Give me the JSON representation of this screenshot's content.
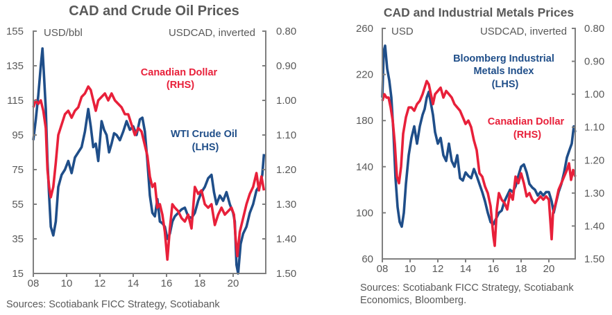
{
  "colors": {
    "oil": "#1f4e89",
    "cad": "#e8203a",
    "metals": "#1f4e89",
    "axis": "#7f7f7f",
    "text": "#595959"
  },
  "chart_data": [
    {
      "type": "line",
      "title": "CAD and Crude Oil Prices",
      "left_unit": "USD/bbl",
      "right_unit": "USDCAD, inverted",
      "xlabel": "",
      "xlim": [
        2008,
        2021.9
      ],
      "x_ticks": [
        "08",
        "10",
        "12",
        "14",
        "16",
        "18",
        "20"
      ],
      "ylim_left": [
        15,
        155
      ],
      "y_ticks_left": [
        "155",
        "135",
        "115",
        "95",
        "75",
        "55",
        "35",
        "15"
      ],
      "ylim_right": [
        0.8,
        1.5
      ],
      "right_inverted": true,
      "y_ticks_right": [
        "0.80",
        "0.90",
        "1.00",
        "1.10",
        "1.20",
        "1.30",
        "1.40",
        "1.50"
      ],
      "grid": false,
      "annotations": [
        {
          "text": [
            "Canadian Dollar",
            "(RHS)"
          ],
          "series": "cad"
        },
        {
          "text": [
            "WTI Crude Oil",
            "(LHS)"
          ],
          "series": "oil"
        }
      ],
      "source": [
        "Sources: Scotiabank FICC Strategy, Scotiabank"
      ],
      "series": [
        {
          "name": "WTI Crude Oil (LHS)",
          "axis": "left",
          "color_key": "oil",
          "x": [
            2008.0,
            2008.15,
            2008.3,
            2008.45,
            2008.55,
            2008.65,
            2008.75,
            2008.85,
            2008.95,
            2009.05,
            2009.2,
            2009.35,
            2009.5,
            2009.7,
            2009.9,
            2010.1,
            2010.3,
            2010.5,
            2010.7,
            2010.9,
            2011.1,
            2011.3,
            2011.45,
            2011.6,
            2011.75,
            2011.9,
            2012.1,
            2012.25,
            2012.4,
            2012.55,
            2012.7,
            2012.85,
            2013.0,
            2013.2,
            2013.4,
            2013.6,
            2013.8,
            2014.0,
            2014.2,
            2014.4,
            2014.55,
            2014.7,
            2014.85,
            2015.0,
            2015.15,
            2015.3,
            2015.45,
            2015.6,
            2015.75,
            2015.9,
            2016.05,
            2016.2,
            2016.35,
            2016.5,
            2016.7,
            2016.9,
            2017.1,
            2017.3,
            2017.5,
            2017.7,
            2017.9,
            2018.1,
            2018.3,
            2018.5,
            2018.7,
            2018.85,
            2019.0,
            2019.2,
            2019.4,
            2019.6,
            2019.8,
            2020.0,
            2020.1,
            2020.2,
            2020.3,
            2020.45,
            2020.6,
            2020.8,
            2021.0,
            2021.2,
            2021.4,
            2021.6,
            2021.75,
            2021.85
          ],
          "y": [
            92,
            104,
            118,
            135,
            145,
            128,
            110,
            80,
            60,
            42,
            37,
            45,
            65,
            72,
            75,
            80,
            73,
            82,
            85,
            88,
            97,
            110,
            100,
            88,
            90,
            80,
            103,
            98,
            95,
            85,
            90,
            96,
            95,
            92,
            97,
            103,
            98,
            100,
            95,
            104,
            105,
            97,
            80,
            60,
            50,
            48,
            58,
            45,
            44,
            42,
            35,
            38,
            45,
            48,
            50,
            52,
            53,
            48,
            47,
            50,
            57,
            62,
            65,
            70,
            72,
            62,
            55,
            60,
            57,
            62,
            55,
            50,
            45,
            20,
            15,
            32,
            38,
            42,
            50,
            55,
            63,
            66,
            72,
            84
          ]
        },
        {
          "name": "Canadian Dollar (RHS)",
          "axis": "right",
          "color_key": "cad",
          "x": [
            2008.0,
            2008.15,
            2008.3,
            2008.45,
            2008.6,
            2008.75,
            2008.85,
            2008.95,
            2009.05,
            2009.2,
            2009.35,
            2009.5,
            2009.7,
            2009.9,
            2010.1,
            2010.3,
            2010.5,
            2010.7,
            2010.9,
            2011.1,
            2011.3,
            2011.45,
            2011.6,
            2011.75,
            2011.9,
            2012.1,
            2012.3,
            2012.5,
            2012.7,
            2012.9,
            2013.1,
            2013.3,
            2013.5,
            2013.7,
            2013.9,
            2014.1,
            2014.3,
            2014.5,
            2014.7,
            2014.85,
            2015.0,
            2015.15,
            2015.3,
            2015.45,
            2015.6,
            2015.75,
            2015.9,
            2016.05,
            2016.2,
            2016.35,
            2016.5,
            2016.7,
            2016.9,
            2017.1,
            2017.3,
            2017.5,
            2017.7,
            2017.9,
            2018.1,
            2018.3,
            2018.5,
            2018.7,
            2018.9,
            2019.1,
            2019.3,
            2019.5,
            2019.7,
            2019.9,
            2020.05,
            2020.15,
            2020.25,
            2020.4,
            2020.6,
            2020.8,
            2021.0,
            2021.2,
            2021.4,
            2021.55,
            2021.7,
            2021.85
          ],
          "y": [
            1.02,
            1.0,
            1.01,
            1.0,
            1.03,
            1.08,
            1.2,
            1.25,
            1.28,
            1.25,
            1.18,
            1.1,
            1.07,
            1.04,
            1.03,
            1.05,
            1.03,
            1.02,
            0.99,
            0.98,
            0.96,
            0.97,
            1.0,
            1.03,
            1.0,
            0.99,
            0.98,
            1.0,
            0.98,
            1.0,
            1.01,
            1.02,
            1.04,
            1.04,
            1.07,
            1.1,
            1.08,
            1.09,
            1.13,
            1.16,
            1.22,
            1.25,
            1.24,
            1.31,
            1.3,
            1.33,
            1.38,
            1.46,
            1.37,
            1.3,
            1.31,
            1.32,
            1.34,
            1.35,
            1.33,
            1.37,
            1.25,
            1.27,
            1.26,
            1.3,
            1.31,
            1.3,
            1.36,
            1.33,
            1.31,
            1.33,
            1.32,
            1.31,
            1.33,
            1.4,
            1.45,
            1.38,
            1.34,
            1.3,
            1.27,
            1.25,
            1.21,
            1.26,
            1.22,
            1.26
          ]
        }
      ]
    },
    {
      "type": "line",
      "title": "CAD and Industrial Metals Prices",
      "left_unit": "USD",
      "right_unit": "USDCAD, inverted",
      "xlabel": "",
      "xlim": [
        2008,
        2021.9
      ],
      "x_ticks": [
        "08",
        "10",
        "12",
        "14",
        "16",
        "18",
        "20"
      ],
      "ylim_left": [
        60,
        260
      ],
      "y_ticks_left": [
        "260",
        "220",
        "180",
        "140",
        "100",
        "60"
      ],
      "ylim_right": [
        0.8,
        1.5
      ],
      "right_inverted": true,
      "y_ticks_right": [
        "0.80",
        "0.90",
        "1.00",
        "1.10",
        "1.20",
        "1.30",
        "1.40",
        "1.50"
      ],
      "grid": false,
      "annotations": [
        {
          "text": [
            "Bloomberg Industrial",
            "Metals Index",
            "(LHS)"
          ],
          "series": "metals"
        },
        {
          "text": [
            "Canadian Dollar",
            "(RHS)"
          ],
          "series": "cad"
        }
      ],
      "source": [
        "Sources: Scotiabank FICC Strategy, Scotiabank",
        "Economics, Bloomberg."
      ],
      "series": [
        {
          "name": "Bloomberg Industrial Metals Index (LHS)",
          "axis": "left",
          "color_key": "metals",
          "x": [
            2008.0,
            2008.1,
            2008.2,
            2008.35,
            2008.5,
            2008.65,
            2008.8,
            2008.95,
            2009.1,
            2009.25,
            2009.4,
            2009.55,
            2009.7,
            2009.9,
            2010.1,
            2010.3,
            2010.5,
            2010.7,
            2010.9,
            2011.05,
            2011.2,
            2011.35,
            2011.5,
            2011.65,
            2011.8,
            2012.0,
            2012.2,
            2012.4,
            2012.6,
            2012.8,
            2013.0,
            2013.2,
            2013.4,
            2013.6,
            2013.8,
            2014.0,
            2014.2,
            2014.4,
            2014.6,
            2014.8,
            2015.0,
            2015.2,
            2015.4,
            2015.6,
            2015.8,
            2016.0,
            2016.2,
            2016.4,
            2016.6,
            2016.8,
            2017.0,
            2017.2,
            2017.4,
            2017.6,
            2017.8,
            2018.0,
            2018.2,
            2018.4,
            2018.6,
            2018.8,
            2019.0,
            2019.2,
            2019.4,
            2019.6,
            2019.8,
            2020.0,
            2020.2,
            2020.35,
            2020.5,
            2020.7,
            2020.9,
            2021.1,
            2021.3,
            2021.5,
            2021.65,
            2021.8,
            2021.9
          ],
          "y": [
            200,
            240,
            245,
            225,
            215,
            200,
            170,
            130,
            105,
            92,
            88,
            100,
            125,
            150,
            165,
            175,
            160,
            175,
            185,
            190,
            200,
            205,
            195,
            185,
            170,
            160,
            165,
            150,
            145,
            160,
            145,
            140,
            150,
            130,
            128,
            135,
            132,
            130,
            138,
            132,
            125,
            118,
            110,
            100,
            92,
            90,
            95,
            100,
            102,
            110,
            115,
            120,
            118,
            123,
            132,
            140,
            142,
            135,
            125,
            122,
            120,
            115,
            118,
            115,
            118,
            118,
            110,
            100,
            108,
            118,
            125,
            135,
            148,
            155,
            160,
            175,
            170
          ]
        },
        {
          "name": "Canadian Dollar (RHS)",
          "axis": "right",
          "color_key": "cad",
          "x": [
            2008.0,
            2008.15,
            2008.3,
            2008.45,
            2008.6,
            2008.75,
            2008.9,
            2009.05,
            2009.2,
            2009.35,
            2009.5,
            2009.7,
            2009.9,
            2010.1,
            2010.3,
            2010.5,
            2010.7,
            2010.9,
            2011.05,
            2011.2,
            2011.35,
            2011.5,
            2011.65,
            2011.8,
            2012.0,
            2012.2,
            2012.4,
            2012.6,
            2012.8,
            2013.0,
            2013.2,
            2013.4,
            2013.6,
            2013.8,
            2014.0,
            2014.2,
            2014.4,
            2014.6,
            2014.8,
            2015.0,
            2015.2,
            2015.4,
            2015.6,
            2015.8,
            2016.0,
            2016.1,
            2016.25,
            2016.4,
            2016.6,
            2016.8,
            2017.0,
            2017.2,
            2017.4,
            2017.6,
            2017.8,
            2018.0,
            2018.2,
            2018.4,
            2018.6,
            2018.8,
            2019.0,
            2019.2,
            2019.4,
            2019.6,
            2019.8,
            2020.0,
            2020.1,
            2020.2,
            2020.3,
            2020.5,
            2020.7,
            2020.9,
            2021.1,
            2021.3,
            2021.45,
            2021.6,
            2021.75,
            2021.9
          ],
          "y": [
            1.02,
            1.0,
            1.01,
            1.01,
            1.04,
            1.08,
            1.15,
            1.25,
            1.27,
            1.22,
            1.12,
            1.07,
            1.04,
            1.04,
            1.05,
            1.03,
            1.02,
            1.0,
            0.98,
            0.96,
            0.97,
            1.0,
            1.03,
            1.0,
            0.99,
            0.98,
            1.01,
            0.99,
            1.0,
            1.01,
            1.03,
            1.04,
            1.05,
            1.07,
            1.09,
            1.08,
            1.1,
            1.14,
            1.17,
            1.24,
            1.25,
            1.28,
            1.3,
            1.34,
            1.43,
            1.46,
            1.35,
            1.3,
            1.32,
            1.33,
            1.35,
            1.3,
            1.32,
            1.25,
            1.27,
            1.24,
            1.27,
            1.31,
            1.3,
            1.32,
            1.33,
            1.32,
            1.31,
            1.32,
            1.31,
            1.32,
            1.38,
            1.44,
            1.36,
            1.33,
            1.29,
            1.27,
            1.25,
            1.23,
            1.21,
            1.26,
            1.23,
            1.25
          ]
        }
      ]
    }
  ]
}
